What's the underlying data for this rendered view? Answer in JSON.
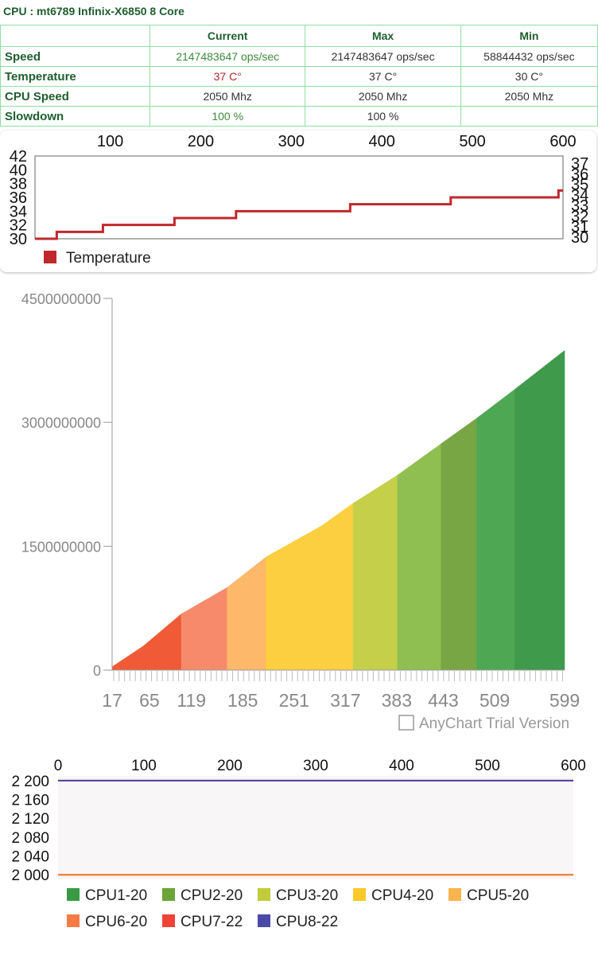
{
  "header": {
    "title": "CPU : mt6789 Infinix-X6850 8 Core"
  },
  "table": {
    "columns": [
      "Current",
      "Max",
      "Min"
    ],
    "rows": [
      {
        "label": "Speed",
        "cells": [
          "2147483647 ops/sec",
          "2147483647 ops/sec",
          "58844432 ops/sec"
        ]
      },
      {
        "label": "Temperature",
        "cells": [
          "37 C°",
          "37 C°",
          "30 C°"
        ]
      },
      {
        "label": "CPU Speed",
        "cells": [
          "2050 Mhz",
          "2050 Mhz",
          "2050 Mhz"
        ]
      },
      {
        "label": "Slowdown",
        "cells": [
          "100 %",
          "100 %"
        ]
      }
    ]
  },
  "chart_data": [
    {
      "type": "line",
      "xlim": [
        17,
        600
      ],
      "xticks": [
        100,
        200,
        300,
        400,
        500,
        600
      ],
      "ylim": [
        30,
        42
      ],
      "yticks": [
        30,
        32,
        34,
        36,
        38,
        40,
        42
      ],
      "y2lim": [
        30,
        37
      ],
      "y2ticks": [
        30,
        31,
        32,
        33,
        34,
        35,
        36,
        37
      ],
      "series": [
        {
          "name": "Temperature",
          "color": "#c0282d",
          "x": [
            17,
            41,
            41,
            92,
            92,
            171,
            171,
            239,
            239,
            365,
            365,
            476,
            476,
            595,
            595,
            600
          ],
          "values": [
            30,
            30,
            31,
            31,
            32,
            32,
            33,
            33,
            34,
            34,
            35,
            35,
            36,
            36,
            37,
            37
          ]
        }
      ]
    },
    {
      "type": "area",
      "xlim": [
        17,
        599
      ],
      "xticks": [
        17,
        65,
        119,
        185,
        251,
        317,
        383,
        443,
        509,
        599
      ],
      "ylim": [
        0,
        4500000000
      ],
      "yticks": [
        0,
        1500000000,
        3000000000,
        4500000000
      ],
      "watermark": "AnyChart Trial Version",
      "bands": [
        {
          "color": "#f05a36",
          "x": [
            17,
            57,
            106
          ],
          "values": [
            40000000,
            290000000,
            680000000
          ]
        },
        {
          "color": "#f68a6a",
          "x": [
            106,
            165
          ],
          "values": [
            680000000,
            1000000000
          ]
        },
        {
          "color": "#fdb86a",
          "x": [
            165,
            215
          ],
          "values": [
            1000000000,
            1370000000
          ]
        },
        {
          "color": "#fbcf3f",
          "x": [
            215,
            251,
            287,
            327
          ],
          "values": [
            1370000000,
            1560000000,
            1750000000,
            2020000000
          ]
        },
        {
          "color": "#c5cf4a",
          "x": [
            327,
            384
          ],
          "values": [
            2020000000,
            2360000000
          ]
        },
        {
          "color": "#8fbf50",
          "x": [
            384,
            440
          ],
          "values": [
            2360000000,
            2740000000
          ]
        },
        {
          "color": "#79a644",
          "x": [
            440,
            486
          ],
          "values": [
            2740000000,
            3050000000
          ]
        },
        {
          "color": "#4ea853",
          "x": [
            486,
            535
          ],
          "values": [
            3050000000,
            3400000000
          ]
        },
        {
          "color": "#3f9a4c",
          "x": [
            535,
            599
          ],
          "values": [
            3400000000,
            3870000000
          ]
        }
      ]
    },
    {
      "type": "line",
      "xlim": [
        0,
        600
      ],
      "xticks": [
        0,
        100,
        200,
        300,
        400,
        500,
        600
      ],
      "ylim": [
        1990,
        2210
      ],
      "yticks": [
        {
          "value": 2000,
          "label": "2 000"
        },
        {
          "value": 2040,
          "label": "2 040"
        },
        {
          "value": 2080,
          "label": "2 080"
        },
        {
          "value": 2120,
          "label": "2 120"
        },
        {
          "value": 2160,
          "label": "2 160"
        },
        {
          "value": 2200,
          "label": "2 200"
        }
      ],
      "series": [
        {
          "name": "CPU1-20",
          "color": "#3a9a43",
          "x": [
            0,
            600
          ],
          "values": [
            2000,
            2000
          ]
        },
        {
          "name": "CPU2-20",
          "color": "#6aa53a",
          "x": [
            0,
            600
          ],
          "values": [
            2000,
            2000
          ]
        },
        {
          "name": "CPU3-20",
          "color": "#c2cc3a",
          "x": [
            0,
            600
          ],
          "values": [
            2000,
            2000
          ]
        },
        {
          "name": "CPU4-20",
          "color": "#fbc92b",
          "x": [
            0,
            600
          ],
          "values": [
            2000,
            2000
          ]
        },
        {
          "name": "CPU5-20",
          "color": "#fbb54c",
          "x": [
            0,
            600
          ],
          "values": [
            2000,
            2000
          ]
        },
        {
          "name": "CPU6-20",
          "color": "#f57b45",
          "x": [
            0,
            600
          ],
          "values": [
            2000,
            2000
          ]
        },
        {
          "name": "CPU7-22",
          "color": "#ee4236",
          "x": [
            0,
            600
          ],
          "values": [
            2200,
            2200
          ]
        },
        {
          "name": "CPU8-22",
          "color": "#4a4aa8",
          "x": [
            0,
            600
          ],
          "values": [
            2200,
            2200
          ]
        }
      ]
    }
  ]
}
